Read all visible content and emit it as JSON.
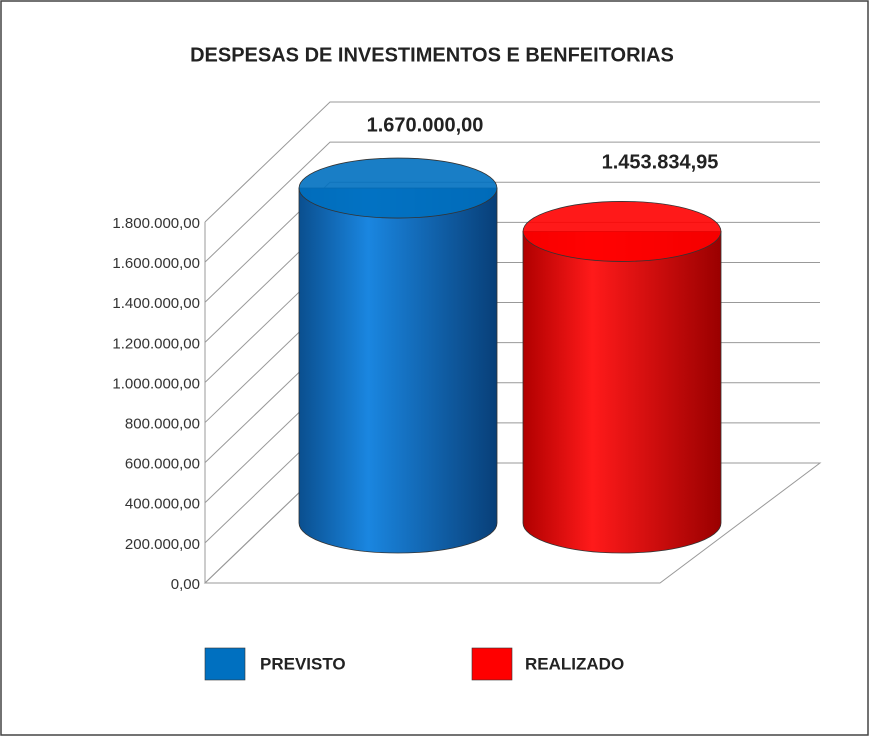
{
  "chart_data": {
    "type": "cylinder",
    "title": "DESPESAS DE INVESTIMENTOS E BENFEITORIAS",
    "categories": [
      null
    ],
    "series": [
      {
        "name": "PREVISTO",
        "color": "#0070c0",
        "values": [
          1670000
        ],
        "value_labels": [
          "1.670.000,00"
        ]
      },
      {
        "name": "REALIZADO",
        "color": "#ff0000",
        "values": [
          1453834.95
        ],
        "value_labels": [
          "1.453.834,95"
        ]
      }
    ],
    "ylim": [
      0,
      1800000
    ],
    "yticks": [
      {
        "value": 0,
        "label": "0,00"
      },
      {
        "value": 200000,
        "label": "200.000,00"
      },
      {
        "value": 400000,
        "label": "400.000,00"
      },
      {
        "value": 600000,
        "label": "600.000,00"
      },
      {
        "value": 800000,
        "label": "800.000,00"
      },
      {
        "value": 1000000,
        "label": "1.000.000,00"
      },
      {
        "value": 1200000,
        "label": "1.200.000,00"
      },
      {
        "value": 1400000,
        "label": "1.400.000,00"
      },
      {
        "value": 1600000,
        "label": "1.600.000,00"
      },
      {
        "value": 1800000,
        "label": "1.800.000,00"
      }
    ],
    "grid": true,
    "legend": "bottom"
  }
}
